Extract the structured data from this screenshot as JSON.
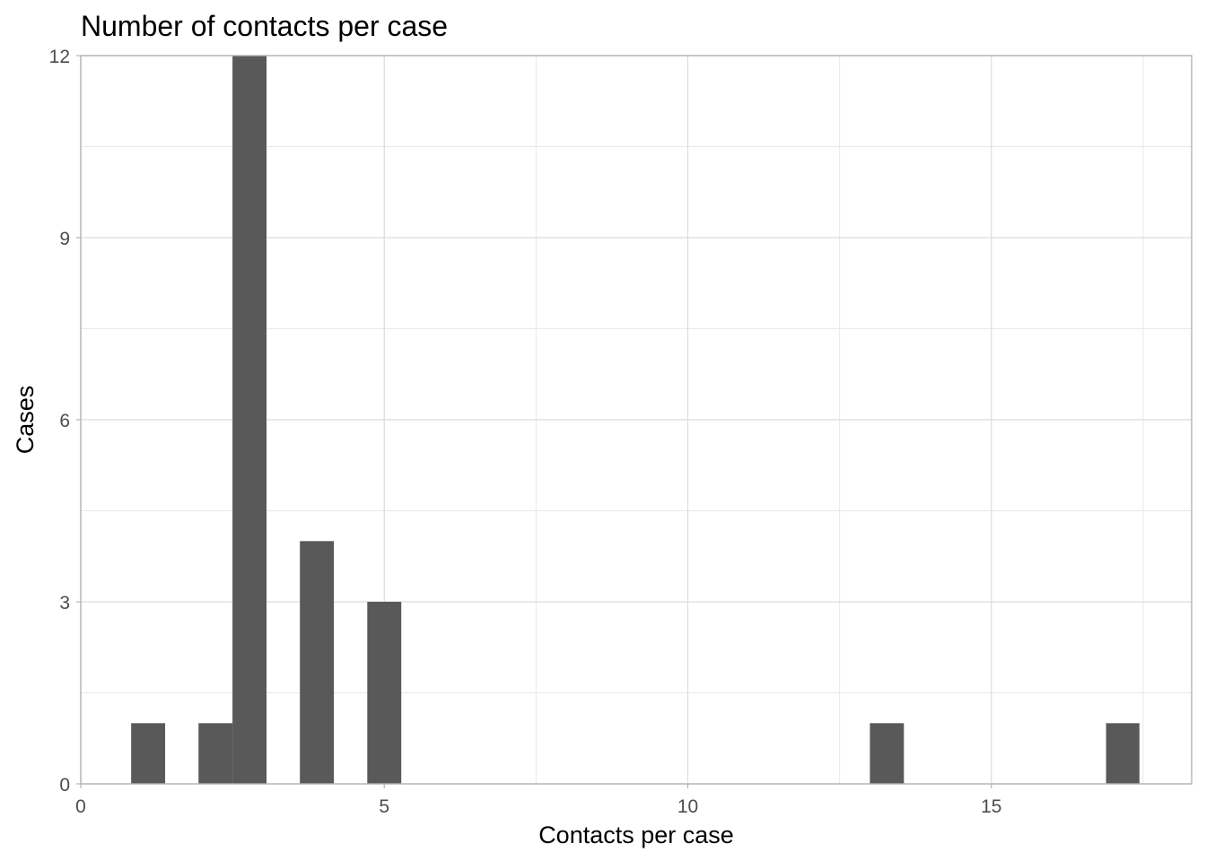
{
  "chart_data": {
    "type": "bar",
    "title": "Number of contacts per case",
    "xlabel": "Contacts per case",
    "ylabel": "Cases",
    "xlim": [
      0,
      18.3
    ],
    "ylim": [
      0,
      12
    ],
    "x_ticks": [
      0,
      5,
      10,
      15
    ],
    "y_ticks": [
      0,
      3,
      6,
      9,
      12
    ],
    "grid": true,
    "bar_color": "#595959",
    "bins": [
      {
        "start": 0.83,
        "end": 1.39,
        "count": 1
      },
      {
        "start": 1.94,
        "end": 2.5,
        "count": 1
      },
      {
        "start": 2.5,
        "end": 3.06,
        "count": 12
      },
      {
        "start": 3.61,
        "end": 4.17,
        "count": 4
      },
      {
        "start": 4.72,
        "end": 5.28,
        "count": 3
      },
      {
        "start": 13.0,
        "end": 13.56,
        "count": 1
      },
      {
        "start": 16.89,
        "end": 17.44,
        "count": 1
      }
    ]
  }
}
